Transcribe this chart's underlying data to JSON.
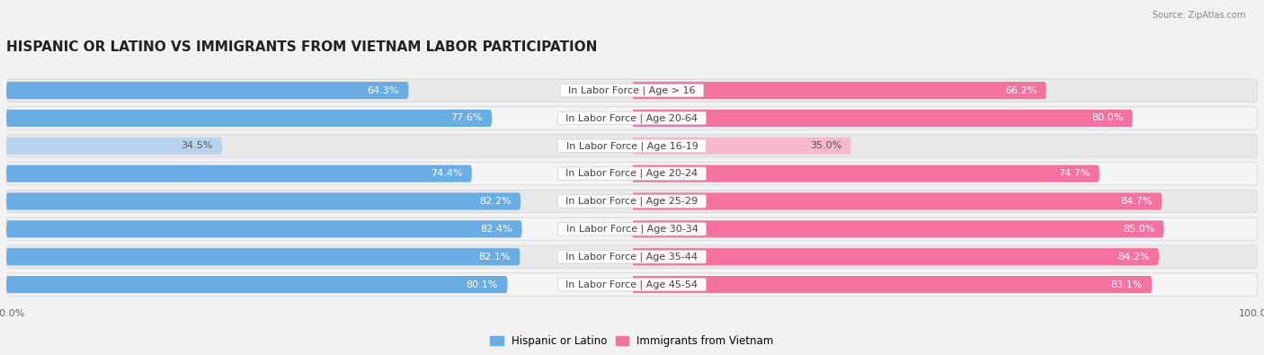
{
  "title": "HISPANIC OR LATINO VS IMMIGRANTS FROM VIETNAM LABOR PARTICIPATION",
  "source": "Source: ZipAtlas.com",
  "categories": [
    "In Labor Force | Age > 16",
    "In Labor Force | Age 20-64",
    "In Labor Force | Age 16-19",
    "In Labor Force | Age 20-24",
    "In Labor Force | Age 25-29",
    "In Labor Force | Age 30-34",
    "In Labor Force | Age 35-44",
    "In Labor Force | Age 45-54"
  ],
  "hispanic_values": [
    64.3,
    77.6,
    34.5,
    74.4,
    82.2,
    82.4,
    82.1,
    80.1
  ],
  "vietnam_values": [
    66.2,
    80.0,
    35.0,
    74.7,
    84.7,
    85.0,
    84.2,
    83.1
  ],
  "hispanic_color": "#6aade4",
  "vietnam_color": "#f472a0",
  "hispanic_color_light": "#b8d4ee",
  "vietnam_color_light": "#f8b8cc",
  "background_color": "#f2f2f2",
  "row_bg_color": "#ffffff",
  "row_bg_alt": "#ebebeb",
  "legend_labels": [
    "Hispanic or Latino",
    "Immigrants from Vietnam"
  ],
  "max_value": 100.0,
  "title_fontsize": 11,
  "label_fontsize": 8,
  "tick_fontsize": 8,
  "source_fontsize": 7
}
